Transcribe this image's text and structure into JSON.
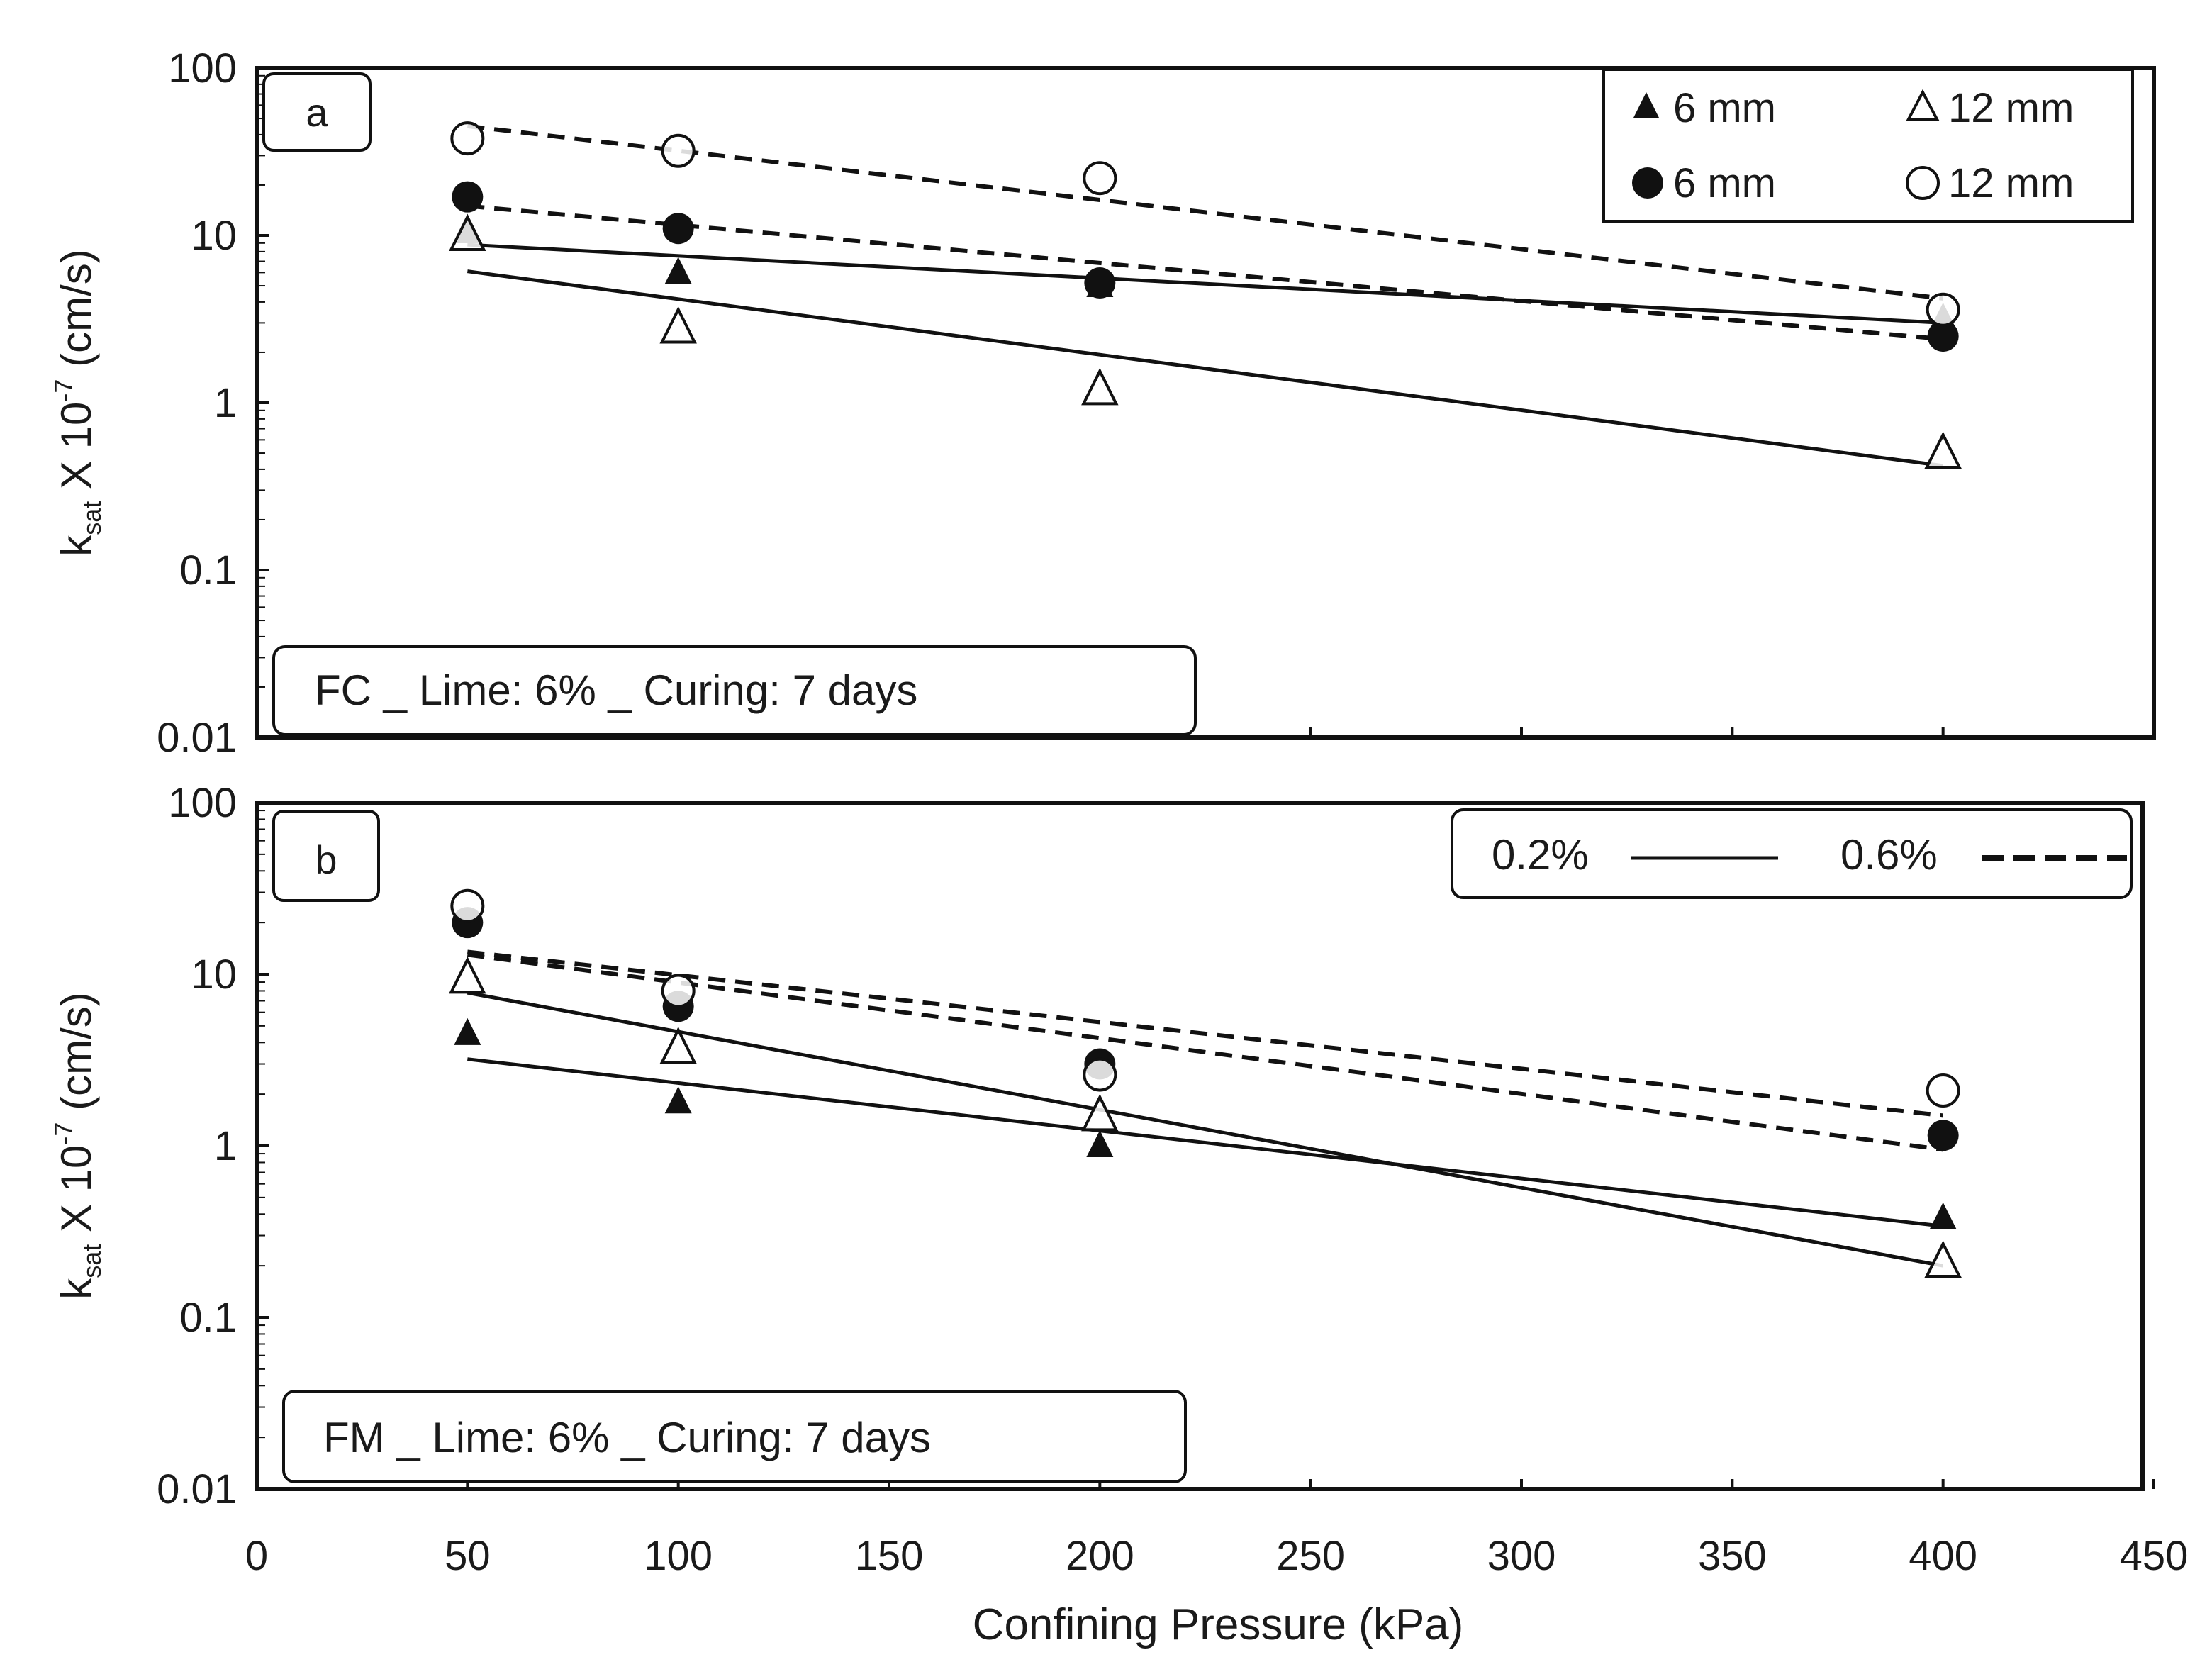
{
  "figure": {
    "xlabel": "Confining Pressure (kPa)",
    "ylabel_main": "k",
    "ylabel_sub": "sat",
    "ylabel_rest": " X 10",
    "ylabel_exp": "-7",
    "ylabel_unit": " (cm/s)"
  },
  "panel_a": {
    "panel_label": "a",
    "condition": "FC _ Lime: 6% _ Curing: 7 days",
    "legend": {
      "filled_triangle": "6 mm",
      "open_triangle": "12 mm",
      "filled_circle": "6 mm",
      "open_circle": "12 mm"
    }
  },
  "panel_b": {
    "panel_label": "b",
    "condition": "FM _ Lime: 6% _ Curing: 7 days",
    "legend": {
      "solid_label": "0.2%",
      "dashed_label": "0.6%"
    }
  },
  "chart_data": [
    {
      "type": "scatter",
      "title": "a",
      "xlabel": "Confining Pressure (kPa)",
      "ylabel": "ksat X 10-7 (cm/s)",
      "yscale": "log",
      "xlim": [
        0,
        450
      ],
      "ylim": [
        0.01,
        100
      ],
      "xticks": [
        0,
        50,
        100,
        150,
        200,
        250,
        300,
        350,
        400,
        450
      ],
      "yticks": [
        0.01,
        0.1,
        1,
        10,
        100
      ],
      "ytick_labels": [
        "0.01",
        "0.1",
        "1",
        "10",
        "100"
      ],
      "series": [
        {
          "name": "6 mm",
          "marker": "filled-triangle",
          "fiber": "0.2%",
          "x": [
            50,
            100,
            200,
            400
          ],
          "y": [
            10.5,
            6.0,
            5.0,
            3.2
          ],
          "trend": [
            [
              50,
              8.8
            ],
            [
              400,
              3.0
            ]
          ],
          "line": "solid"
        },
        {
          "name": "12 mm",
          "marker": "open-triangle",
          "fiber": "0.2%",
          "x": [
            50,
            100,
            200,
            400
          ],
          "y": [
            10.0,
            2.8,
            1.2,
            0.5
          ],
          "trend": [
            [
              50,
              6.1
            ],
            [
              400,
              0.42
            ]
          ],
          "line": "solid"
        },
        {
          "name": "6 mm",
          "marker": "filled-circle",
          "fiber": "0.6%",
          "x": [
            50,
            100,
            200,
            400
          ],
          "y": [
            17.0,
            11.0,
            5.2,
            2.5
          ],
          "trend": [
            [
              50,
              15.0
            ],
            [
              400,
              2.4
            ]
          ],
          "line": "dashed"
        },
        {
          "name": "12 mm",
          "marker": "open-circle",
          "fiber": "0.6%",
          "x": [
            50,
            100,
            200,
            400
          ],
          "y": [
            38.0,
            32.0,
            22.0,
            3.6
          ],
          "trend": [
            [
              50,
              45.0
            ],
            [
              400,
              4.2
            ]
          ],
          "line": "dashed"
        }
      ]
    },
    {
      "type": "scatter",
      "title": "b",
      "xlabel": "Confining Pressure (kPa)",
      "ylabel": "ksat X 10-7 (cm/s)",
      "yscale": "log",
      "xlim": [
        0,
        450
      ],
      "ylim": [
        0.01,
        100
      ],
      "xticks": [
        0,
        50,
        100,
        150,
        200,
        250,
        300,
        350,
        400,
        450
      ],
      "yticks": [
        0.01,
        0.1,
        1,
        10,
        100
      ],
      "ytick_labels": [
        "0.01",
        "0.1",
        "1",
        "10",
        "100"
      ],
      "series": [
        {
          "name": "6 mm",
          "marker": "filled-triangle",
          "fiber": "0.2%",
          "x": [
            50,
            100,
            200,
            400
          ],
          "y": [
            4.5,
            1.8,
            1.0,
            0.38
          ],
          "trend": [
            [
              50,
              3.2
            ],
            [
              400,
              0.34
            ]
          ],
          "line": "solid"
        },
        {
          "name": "12 mm",
          "marker": "open-triangle",
          "fiber": "0.2%",
          "x": [
            50,
            100,
            200,
            400
          ],
          "y": [
            9.5,
            3.7,
            1.5,
            0.21
          ],
          "trend": [
            [
              50,
              7.8
            ],
            [
              400,
              0.2
            ]
          ],
          "line": "solid"
        },
        {
          "name": "6 mm",
          "marker": "filled-circle",
          "fiber": "0.6%",
          "x": [
            50,
            100,
            200,
            400
          ],
          "y": [
            20.0,
            6.5,
            3.0,
            1.15
          ],
          "trend": [
            [
              50,
              13.0
            ],
            [
              400,
              0.95
            ]
          ],
          "line": "dashed"
        },
        {
          "name": "12 mm",
          "marker": "open-circle",
          "fiber": "0.6%",
          "x": [
            50,
            100,
            200,
            400
          ],
          "y": [
            25.0,
            8.0,
            2.6,
            2.1
          ],
          "trend": [
            [
              50,
              13.5
            ],
            [
              400,
              1.5
            ]
          ],
          "line": "dashed"
        }
      ]
    }
  ]
}
